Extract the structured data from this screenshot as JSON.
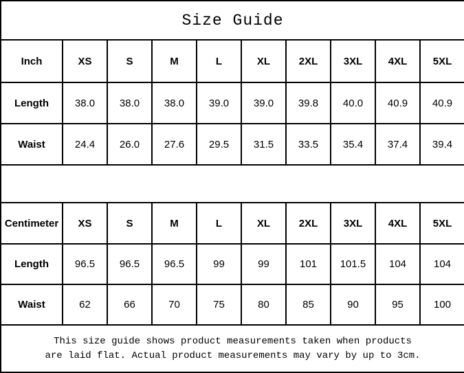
{
  "title": "Size Guide",
  "inch_table": {
    "unit_label": "Inch",
    "sizes": [
      "XS",
      "S",
      "M",
      "L",
      "XL",
      "2XL",
      "3XL",
      "4XL",
      "5XL"
    ],
    "rows": [
      {
        "label": "Length",
        "values": [
          "38.0",
          "38.0",
          "38.0",
          "39.0",
          "39.0",
          "39.8",
          "40.0",
          "40.9",
          "40.9"
        ]
      },
      {
        "label": "Waist",
        "values": [
          "24.4",
          "26.0",
          "27.6",
          "29.5",
          "31.5",
          "33.5",
          "35.4",
          "37.4",
          "39.4"
        ]
      }
    ]
  },
  "cm_table": {
    "unit_label": "Centimeter",
    "sizes": [
      "XS",
      "S",
      "M",
      "L",
      "XL",
      "2XL",
      "3XL",
      "4XL",
      "5XL"
    ],
    "rows": [
      {
        "label": "Length",
        "values": [
          "96.5",
          "96.5",
          "96.5",
          "99",
          "99",
          "101",
          "101.5",
          "104",
          "104"
        ]
      },
      {
        "label": "Waist",
        "values": [
          "62",
          "66",
          "70",
          "75",
          "80",
          "85",
          "90",
          "95",
          "100"
        ]
      }
    ]
  },
  "footer": {
    "line1": "This size guide shows product measurements taken when products",
    "line2": "are laid flat. Actual product measurements may vary by up to 3cm."
  },
  "colors": {
    "text": "#000000",
    "background": "#ffffff",
    "border": "#000000"
  }
}
